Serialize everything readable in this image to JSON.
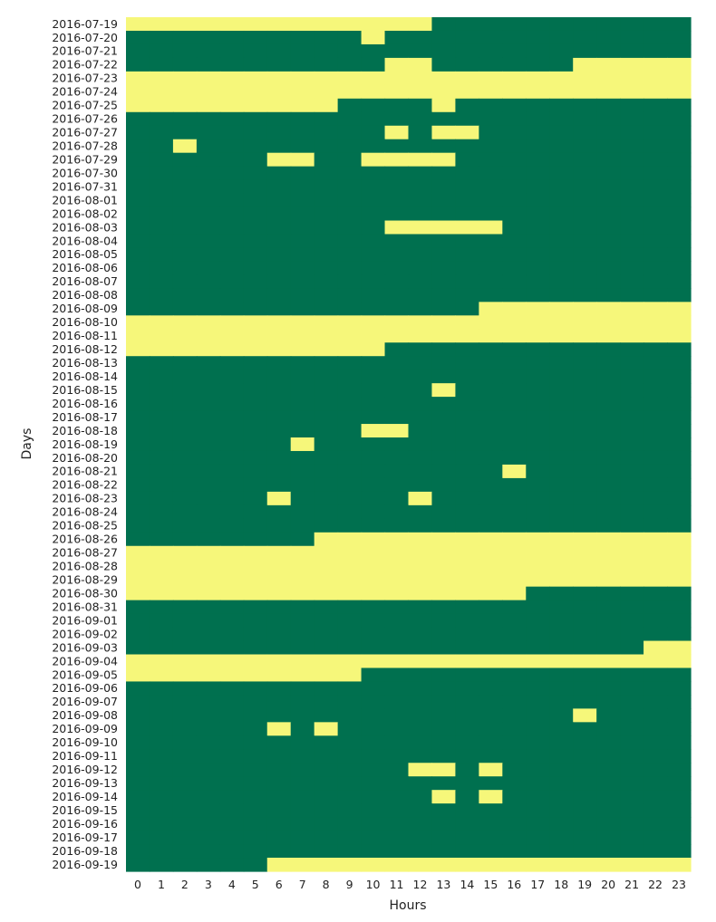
{
  "chart_data": {
    "type": "heatmap",
    "xlabel": "Hours",
    "ylabel": "Days",
    "x": [
      "0",
      "1",
      "2",
      "3",
      "4",
      "5",
      "6",
      "7",
      "8",
      "9",
      "10",
      "11",
      "12",
      "13",
      "14",
      "15",
      "16",
      "17",
      "18",
      "19",
      "20",
      "21",
      "22",
      "23"
    ],
    "y": [
      "2016-07-19",
      "2016-07-20",
      "2016-07-21",
      "2016-07-22",
      "2016-07-23",
      "2016-07-24",
      "2016-07-25",
      "2016-07-26",
      "2016-07-27",
      "2016-07-28",
      "2016-07-29",
      "2016-07-30",
      "2016-07-31",
      "2016-08-01",
      "2016-08-02",
      "2016-08-03",
      "2016-08-04",
      "2016-08-05",
      "2016-08-06",
      "2016-08-07",
      "2016-08-08",
      "2016-08-09",
      "2016-08-10",
      "2016-08-11",
      "2016-08-12",
      "2016-08-13",
      "2016-08-14",
      "2016-08-15",
      "2016-08-16",
      "2016-08-17",
      "2016-08-18",
      "2016-08-19",
      "2016-08-20",
      "2016-08-21",
      "2016-08-22",
      "2016-08-23",
      "2016-08-24",
      "2016-08-25",
      "2016-08-26",
      "2016-08-27",
      "2016-08-28",
      "2016-08-29",
      "2016-08-30",
      "2016-08-31",
      "2016-09-01",
      "2016-09-02",
      "2016-09-03",
      "2016-09-04",
      "2016-09-05",
      "2016-09-06",
      "2016-09-07",
      "2016-09-08",
      "2016-09-09",
      "2016-09-10",
      "2016-09-11",
      "2016-09-12",
      "2016-09-13",
      "2016-09-14",
      "2016-09-15",
      "2016-09-16",
      "2016-09-17",
      "2016-09-18",
      "2016-09-19"
    ],
    "values": [
      [
        1,
        1,
        1,
        1,
        1,
        1,
        1,
        1,
        1,
        1,
        1,
        1,
        1,
        0,
        0,
        0,
        0,
        0,
        0,
        0,
        0,
        0,
        0,
        0
      ],
      [
        0,
        0,
        0,
        0,
        0,
        0,
        0,
        0,
        0,
        0,
        1,
        0,
        0,
        0,
        0,
        0,
        0,
        0,
        0,
        0,
        0,
        0,
        0,
        0
      ],
      [
        0,
        0,
        0,
        0,
        0,
        0,
        0,
        0,
        0,
        0,
        0,
        0,
        0,
        0,
        0,
        0,
        0,
        0,
        0,
        0,
        0,
        0,
        0,
        0
      ],
      [
        0,
        0,
        0,
        0,
        0,
        0,
        0,
        0,
        0,
        0,
        0,
        1,
        1,
        0,
        0,
        0,
        0,
        0,
        0,
        1,
        1,
        1,
        1,
        1
      ],
      [
        1,
        1,
        1,
        1,
        1,
        1,
        1,
        1,
        1,
        1,
        1,
        1,
        1,
        1,
        1,
        1,
        1,
        1,
        1,
        1,
        1,
        1,
        1,
        1
      ],
      [
        1,
        1,
        1,
        1,
        1,
        1,
        1,
        1,
        1,
        1,
        1,
        1,
        1,
        1,
        1,
        1,
        1,
        1,
        1,
        1,
        1,
        1,
        1,
        1
      ],
      [
        1,
        1,
        1,
        1,
        1,
        1,
        1,
        1,
        1,
        0,
        0,
        0,
        0,
        1,
        0,
        0,
        0,
        0,
        0,
        0,
        0,
        0,
        0,
        0
      ],
      [
        0,
        0,
        0,
        0,
        0,
        0,
        0,
        0,
        0,
        0,
        0,
        0,
        0,
        0,
        0,
        0,
        0,
        0,
        0,
        0,
        0,
        0,
        0,
        0
      ],
      [
        0,
        0,
        0,
        0,
        0,
        0,
        0,
        0,
        0,
        0,
        0,
        1,
        0,
        1,
        1,
        0,
        0,
        0,
        0,
        0,
        0,
        0,
        0,
        0
      ],
      [
        0,
        0,
        1,
        0,
        0,
        0,
        0,
        0,
        0,
        0,
        0,
        0,
        0,
        0,
        0,
        0,
        0,
        0,
        0,
        0,
        0,
        0,
        0,
        0
      ],
      [
        0,
        0,
        0,
        0,
        0,
        0,
        1,
        1,
        0,
        0,
        1,
        1,
        1,
        1,
        0,
        0,
        0,
        0,
        0,
        0,
        0,
        0,
        0,
        0
      ],
      [
        0,
        0,
        0,
        0,
        0,
        0,
        0,
        0,
        0,
        0,
        0,
        0,
        0,
        0,
        0,
        0,
        0,
        0,
        0,
        0,
        0,
        0,
        0,
        0
      ],
      [
        0,
        0,
        0,
        0,
        0,
        0,
        0,
        0,
        0,
        0,
        0,
        0,
        0,
        0,
        0,
        0,
        0,
        0,
        0,
        0,
        0,
        0,
        0,
        0
      ],
      [
        0,
        0,
        0,
        0,
        0,
        0,
        0,
        0,
        0,
        0,
        0,
        0,
        0,
        0,
        0,
        0,
        0,
        0,
        0,
        0,
        0,
        0,
        0,
        0
      ],
      [
        0,
        0,
        0,
        0,
        0,
        0,
        0,
        0,
        0,
        0,
        0,
        0,
        0,
        0,
        0,
        0,
        0,
        0,
        0,
        0,
        0,
        0,
        0,
        0
      ],
      [
        0,
        0,
        0,
        0,
        0,
        0,
        0,
        0,
        0,
        0,
        0,
        1,
        1,
        1,
        1,
        1,
        0,
        0,
        0,
        0,
        0,
        0,
        0,
        0
      ],
      [
        0,
        0,
        0,
        0,
        0,
        0,
        0,
        0,
        0,
        0,
        0,
        0,
        0,
        0,
        0,
        0,
        0,
        0,
        0,
        0,
        0,
        0,
        0,
        0
      ],
      [
        0,
        0,
        0,
        0,
        0,
        0,
        0,
        0,
        0,
        0,
        0,
        0,
        0,
        0,
        0,
        0,
        0,
        0,
        0,
        0,
        0,
        0,
        0,
        0
      ],
      [
        0,
        0,
        0,
        0,
        0,
        0,
        0,
        0,
        0,
        0,
        0,
        0,
        0,
        0,
        0,
        0,
        0,
        0,
        0,
        0,
        0,
        0,
        0,
        0
      ],
      [
        0,
        0,
        0,
        0,
        0,
        0,
        0,
        0,
        0,
        0,
        0,
        0,
        0,
        0,
        0,
        0,
        0,
        0,
        0,
        0,
        0,
        0,
        0,
        0
      ],
      [
        0,
        0,
        0,
        0,
        0,
        0,
        0,
        0,
        0,
        0,
        0,
        0,
        0,
        0,
        0,
        0,
        0,
        0,
        0,
        0,
        0,
        0,
        0,
        0
      ],
      [
        0,
        0,
        0,
        0,
        0,
        0,
        0,
        0,
        0,
        0,
        0,
        0,
        0,
        0,
        0,
        1,
        1,
        1,
        1,
        1,
        1,
        1,
        1,
        1
      ],
      [
        1,
        1,
        1,
        1,
        1,
        1,
        1,
        1,
        1,
        1,
        1,
        1,
        1,
        1,
        1,
        1,
        1,
        1,
        1,
        1,
        1,
        1,
        1,
        1
      ],
      [
        1,
        1,
        1,
        1,
        1,
        1,
        1,
        1,
        1,
        1,
        1,
        1,
        1,
        1,
        1,
        1,
        1,
        1,
        1,
        1,
        1,
        1,
        1,
        1
      ],
      [
        1,
        1,
        1,
        1,
        1,
        1,
        1,
        1,
        1,
        1,
        1,
        0,
        0,
        0,
        0,
        0,
        0,
        0,
        0,
        0,
        0,
        0,
        0,
        0
      ],
      [
        0,
        0,
        0,
        0,
        0,
        0,
        0,
        0,
        0,
        0,
        0,
        0,
        0,
        0,
        0,
        0,
        0,
        0,
        0,
        0,
        0,
        0,
        0,
        0
      ],
      [
        0,
        0,
        0,
        0,
        0,
        0,
        0,
        0,
        0,
        0,
        0,
        0,
        0,
        0,
        0,
        0,
        0,
        0,
        0,
        0,
        0,
        0,
        0,
        0
      ],
      [
        0,
        0,
        0,
        0,
        0,
        0,
        0,
        0,
        0,
        0,
        0,
        0,
        0,
        1,
        0,
        0,
        0,
        0,
        0,
        0,
        0,
        0,
        0,
        0
      ],
      [
        0,
        0,
        0,
        0,
        0,
        0,
        0,
        0,
        0,
        0,
        0,
        0,
        0,
        0,
        0,
        0,
        0,
        0,
        0,
        0,
        0,
        0,
        0,
        0
      ],
      [
        0,
        0,
        0,
        0,
        0,
        0,
        0,
        0,
        0,
        0,
        0,
        0,
        0,
        0,
        0,
        0,
        0,
        0,
        0,
        0,
        0,
        0,
        0,
        0
      ],
      [
        0,
        0,
        0,
        0,
        0,
        0,
        0,
        0,
        0,
        0,
        1,
        1,
        0,
        0,
        0,
        0,
        0,
        0,
        0,
        0,
        0,
        0,
        0,
        0
      ],
      [
        0,
        0,
        0,
        0,
        0,
        0,
        0,
        1,
        0,
        0,
        0,
        0,
        0,
        0,
        0,
        0,
        0,
        0,
        0,
        0,
        0,
        0,
        0,
        0
      ],
      [
        0,
        0,
        0,
        0,
        0,
        0,
        0,
        0,
        0,
        0,
        0,
        0,
        0,
        0,
        0,
        0,
        0,
        0,
        0,
        0,
        0,
        0,
        0,
        0
      ],
      [
        0,
        0,
        0,
        0,
        0,
        0,
        0,
        0,
        0,
        0,
        0,
        0,
        0,
        0,
        0,
        0,
        1,
        0,
        0,
        0,
        0,
        0,
        0,
        0
      ],
      [
        0,
        0,
        0,
        0,
        0,
        0,
        0,
        0,
        0,
        0,
        0,
        0,
        0,
        0,
        0,
        0,
        0,
        0,
        0,
        0,
        0,
        0,
        0,
        0
      ],
      [
        0,
        0,
        0,
        0,
        0,
        0,
        1,
        0,
        0,
        0,
        0,
        0,
        1,
        0,
        0,
        0,
        0,
        0,
        0,
        0,
        0,
        0,
        0,
        0
      ],
      [
        0,
        0,
        0,
        0,
        0,
        0,
        0,
        0,
        0,
        0,
        0,
        0,
        0,
        0,
        0,
        0,
        0,
        0,
        0,
        0,
        0,
        0,
        0,
        0
      ],
      [
        0,
        0,
        0,
        0,
        0,
        0,
        0,
        0,
        0,
        0,
        0,
        0,
        0,
        0,
        0,
        0,
        0,
        0,
        0,
        0,
        0,
        0,
        0,
        0
      ],
      [
        0,
        0,
        0,
        0,
        0,
        0,
        0,
        0,
        1,
        1,
        1,
        1,
        1,
        1,
        1,
        1,
        1,
        1,
        1,
        1,
        1,
        1,
        1,
        1
      ],
      [
        1,
        1,
        1,
        1,
        1,
        1,
        1,
        1,
        1,
        1,
        1,
        1,
        1,
        1,
        1,
        1,
        1,
        1,
        1,
        1,
        1,
        1,
        1,
        1
      ],
      [
        1,
        1,
        1,
        1,
        1,
        1,
        1,
        1,
        1,
        1,
        1,
        1,
        1,
        1,
        1,
        1,
        1,
        1,
        1,
        1,
        1,
        1,
        1,
        1
      ],
      [
        1,
        1,
        1,
        1,
        1,
        1,
        1,
        1,
        1,
        1,
        1,
        1,
        1,
        1,
        1,
        1,
        1,
        1,
        1,
        1,
        1,
        1,
        1,
        1
      ],
      [
        1,
        1,
        1,
        1,
        1,
        1,
        1,
        1,
        1,
        1,
        1,
        1,
        1,
        1,
        1,
        1,
        1,
        0,
        0,
        0,
        0,
        0,
        0,
        0
      ],
      [
        0,
        0,
        0,
        0,
        0,
        0,
        0,
        0,
        0,
        0,
        0,
        0,
        0,
        0,
        0,
        0,
        0,
        0,
        0,
        0,
        0,
        0,
        0,
        0
      ],
      [
        0,
        0,
        0,
        0,
        0,
        0,
        0,
        0,
        0,
        0,
        0,
        0,
        0,
        0,
        0,
        0,
        0,
        0,
        0,
        0,
        0,
        0,
        0,
        0
      ],
      [
        0,
        0,
        0,
        0,
        0,
        0,
        0,
        0,
        0,
        0,
        0,
        0,
        0,
        0,
        0,
        0,
        0,
        0,
        0,
        0,
        0,
        0,
        0,
        0
      ],
      [
        0,
        0,
        0,
        0,
        0,
        0,
        0,
        0,
        0,
        0,
        0,
        0,
        0,
        0,
        0,
        0,
        0,
        0,
        0,
        0,
        0,
        0,
        1,
        1
      ],
      [
        1,
        1,
        1,
        1,
        1,
        1,
        1,
        1,
        1,
        1,
        1,
        1,
        1,
        1,
        1,
        1,
        1,
        1,
        1,
        1,
        1,
        1,
        1,
        1
      ],
      [
        1,
        1,
        1,
        1,
        1,
        1,
        1,
        1,
        1,
        1,
        0,
        0,
        0,
        0,
        0,
        0,
        0,
        0,
        0,
        0,
        0,
        0,
        0,
        0
      ],
      [
        0,
        0,
        0,
        0,
        0,
        0,
        0,
        0,
        0,
        0,
        0,
        0,
        0,
        0,
        0,
        0,
        0,
        0,
        0,
        0,
        0,
        0,
        0,
        0
      ],
      [
        0,
        0,
        0,
        0,
        0,
        0,
        0,
        0,
        0,
        0,
        0,
        0,
        0,
        0,
        0,
        0,
        0,
        0,
        0,
        0,
        0,
        0,
        0,
        0
      ],
      [
        0,
        0,
        0,
        0,
        0,
        0,
        0,
        0,
        0,
        0,
        0,
        0,
        0,
        0,
        0,
        0,
        0,
        0,
        0,
        1,
        0,
        0,
        0,
        0
      ],
      [
        0,
        0,
        0,
        0,
        0,
        0,
        1,
        0,
        1,
        0,
        0,
        0,
        0,
        0,
        0,
        0,
        0,
        0,
        0,
        0,
        0,
        0,
        0,
        0
      ],
      [
        0,
        0,
        0,
        0,
        0,
        0,
        0,
        0,
        0,
        0,
        0,
        0,
        0,
        0,
        0,
        0,
        0,
        0,
        0,
        0,
        0,
        0,
        0,
        0
      ],
      [
        0,
        0,
        0,
        0,
        0,
        0,
        0,
        0,
        0,
        0,
        0,
        0,
        0,
        0,
        0,
        0,
        0,
        0,
        0,
        0,
        0,
        0,
        0,
        0
      ],
      [
        0,
        0,
        0,
        0,
        0,
        0,
        0,
        0,
        0,
        0,
        0,
        0,
        1,
        1,
        0,
        1,
        0,
        0,
        0,
        0,
        0,
        0,
        0,
        0
      ],
      [
        0,
        0,
        0,
        0,
        0,
        0,
        0,
        0,
        0,
        0,
        0,
        0,
        0,
        0,
        0,
        0,
        0,
        0,
        0,
        0,
        0,
        0,
        0,
        0
      ],
      [
        0,
        0,
        0,
        0,
        0,
        0,
        0,
        0,
        0,
        0,
        0,
        0,
        0,
        1,
        0,
        1,
        0,
        0,
        0,
        0,
        0,
        0,
        0,
        0
      ],
      [
        0,
        0,
        0,
        0,
        0,
        0,
        0,
        0,
        0,
        0,
        0,
        0,
        0,
        0,
        0,
        0,
        0,
        0,
        0,
        0,
        0,
        0,
        0,
        0
      ],
      [
        0,
        0,
        0,
        0,
        0,
        0,
        0,
        0,
        0,
        0,
        0,
        0,
        0,
        0,
        0,
        0,
        0,
        0,
        0,
        0,
        0,
        0,
        0,
        0
      ],
      [
        0,
        0,
        0,
        0,
        0,
        0,
        0,
        0,
        0,
        0,
        0,
        0,
        0,
        0,
        0,
        0,
        0,
        0,
        0,
        0,
        0,
        0,
        0,
        0
      ],
      [
        0,
        0,
        0,
        0,
        0,
        0,
        0,
        0,
        0,
        0,
        0,
        0,
        0,
        0,
        0,
        0,
        0,
        0,
        0,
        0,
        0,
        0,
        0,
        0
      ],
      [
        0,
        0,
        0,
        0,
        0,
        0,
        1,
        1,
        1,
        1,
        1,
        1,
        1,
        1,
        1,
        1,
        1,
        1,
        1,
        1,
        1,
        1,
        1,
        1
      ]
    ],
    "colors": {
      "0": "#00704f",
      "1": "#f6f77a"
    },
    "legend": "none",
    "grid": false
  }
}
